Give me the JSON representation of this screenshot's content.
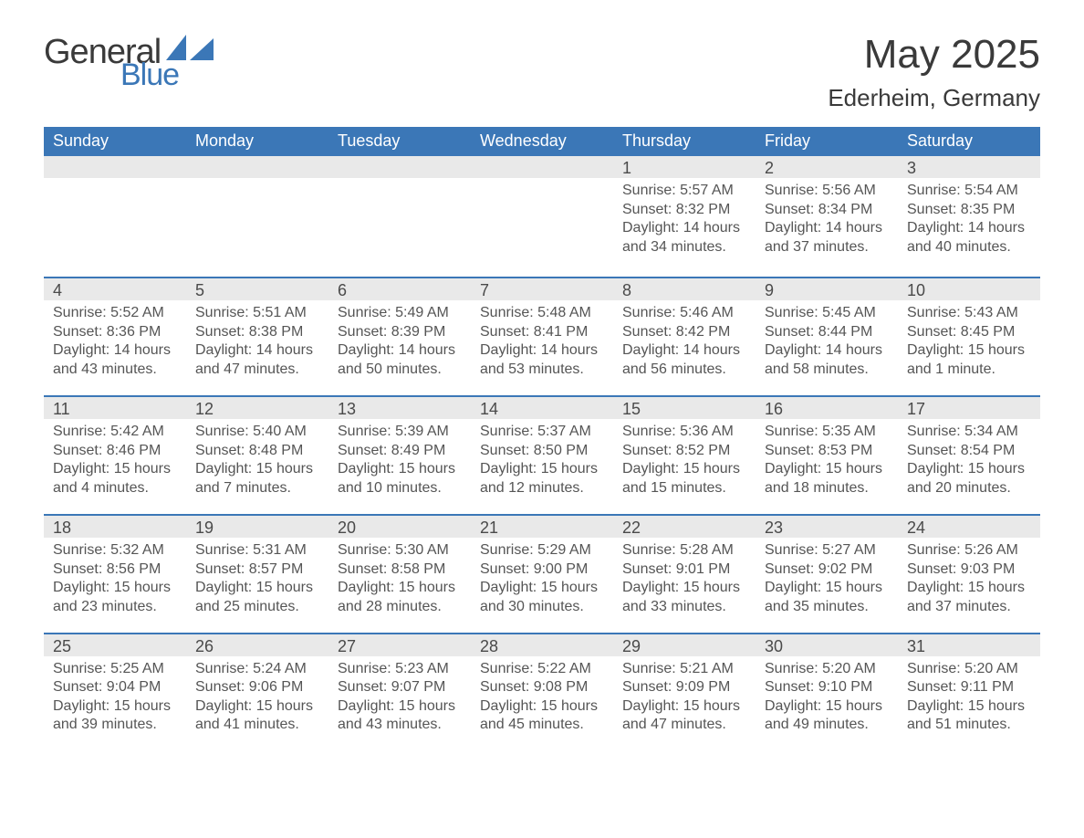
{
  "logo": {
    "word1": "General",
    "word2": "Blue",
    "word1_color": "#3a3a3a",
    "word2_color": "#3b77b7",
    "sail_color": "#3b77b7"
  },
  "header": {
    "month_title": "May 2025",
    "location": "Ederheim, Germany"
  },
  "calendar": {
    "type": "table",
    "columns": [
      "Sunday",
      "Monday",
      "Tuesday",
      "Wednesday",
      "Thursday",
      "Friday",
      "Saturday"
    ],
    "header_bg": "#3b77b7",
    "header_text_color": "#ffffff",
    "daynum_bg": "#e9e9e9",
    "divider_color": "#3b77b7",
    "body_text_color": "#555555",
    "font_family": "Helvetica Neue, Helvetica, Arial, sans-serif",
    "weeks": [
      [
        {
          "day": "",
          "sunrise": "",
          "sunset": "",
          "daylight": ""
        },
        {
          "day": "",
          "sunrise": "",
          "sunset": "",
          "daylight": ""
        },
        {
          "day": "",
          "sunrise": "",
          "sunset": "",
          "daylight": ""
        },
        {
          "day": "",
          "sunrise": "",
          "sunset": "",
          "daylight": ""
        },
        {
          "day": "1",
          "sunrise": "Sunrise: 5:57 AM",
          "sunset": "Sunset: 8:32 PM",
          "daylight": "Daylight: 14 hours and 34 minutes."
        },
        {
          "day": "2",
          "sunrise": "Sunrise: 5:56 AM",
          "sunset": "Sunset: 8:34 PM",
          "daylight": "Daylight: 14 hours and 37 minutes."
        },
        {
          "day": "3",
          "sunrise": "Sunrise: 5:54 AM",
          "sunset": "Sunset: 8:35 PM",
          "daylight": "Daylight: 14 hours and 40 minutes."
        }
      ],
      [
        {
          "day": "4",
          "sunrise": "Sunrise: 5:52 AM",
          "sunset": "Sunset: 8:36 PM",
          "daylight": "Daylight: 14 hours and 43 minutes."
        },
        {
          "day": "5",
          "sunrise": "Sunrise: 5:51 AM",
          "sunset": "Sunset: 8:38 PM",
          "daylight": "Daylight: 14 hours and 47 minutes."
        },
        {
          "day": "6",
          "sunrise": "Sunrise: 5:49 AM",
          "sunset": "Sunset: 8:39 PM",
          "daylight": "Daylight: 14 hours and 50 minutes."
        },
        {
          "day": "7",
          "sunrise": "Sunrise: 5:48 AM",
          "sunset": "Sunset: 8:41 PM",
          "daylight": "Daylight: 14 hours and 53 minutes."
        },
        {
          "day": "8",
          "sunrise": "Sunrise: 5:46 AM",
          "sunset": "Sunset: 8:42 PM",
          "daylight": "Daylight: 14 hours and 56 minutes."
        },
        {
          "day": "9",
          "sunrise": "Sunrise: 5:45 AM",
          "sunset": "Sunset: 8:44 PM",
          "daylight": "Daylight: 14 hours and 58 minutes."
        },
        {
          "day": "10",
          "sunrise": "Sunrise: 5:43 AM",
          "sunset": "Sunset: 8:45 PM",
          "daylight": "Daylight: 15 hours and 1 minute."
        }
      ],
      [
        {
          "day": "11",
          "sunrise": "Sunrise: 5:42 AM",
          "sunset": "Sunset: 8:46 PM",
          "daylight": "Daylight: 15 hours and 4 minutes."
        },
        {
          "day": "12",
          "sunrise": "Sunrise: 5:40 AM",
          "sunset": "Sunset: 8:48 PM",
          "daylight": "Daylight: 15 hours and 7 minutes."
        },
        {
          "day": "13",
          "sunrise": "Sunrise: 5:39 AM",
          "sunset": "Sunset: 8:49 PM",
          "daylight": "Daylight: 15 hours and 10 minutes."
        },
        {
          "day": "14",
          "sunrise": "Sunrise: 5:37 AM",
          "sunset": "Sunset: 8:50 PM",
          "daylight": "Daylight: 15 hours and 12 minutes."
        },
        {
          "day": "15",
          "sunrise": "Sunrise: 5:36 AM",
          "sunset": "Sunset: 8:52 PM",
          "daylight": "Daylight: 15 hours and 15 minutes."
        },
        {
          "day": "16",
          "sunrise": "Sunrise: 5:35 AM",
          "sunset": "Sunset: 8:53 PM",
          "daylight": "Daylight: 15 hours and 18 minutes."
        },
        {
          "day": "17",
          "sunrise": "Sunrise: 5:34 AM",
          "sunset": "Sunset: 8:54 PM",
          "daylight": "Daylight: 15 hours and 20 minutes."
        }
      ],
      [
        {
          "day": "18",
          "sunrise": "Sunrise: 5:32 AM",
          "sunset": "Sunset: 8:56 PM",
          "daylight": "Daylight: 15 hours and 23 minutes."
        },
        {
          "day": "19",
          "sunrise": "Sunrise: 5:31 AM",
          "sunset": "Sunset: 8:57 PM",
          "daylight": "Daylight: 15 hours and 25 minutes."
        },
        {
          "day": "20",
          "sunrise": "Sunrise: 5:30 AM",
          "sunset": "Sunset: 8:58 PM",
          "daylight": "Daylight: 15 hours and 28 minutes."
        },
        {
          "day": "21",
          "sunrise": "Sunrise: 5:29 AM",
          "sunset": "Sunset: 9:00 PM",
          "daylight": "Daylight: 15 hours and 30 minutes."
        },
        {
          "day": "22",
          "sunrise": "Sunrise: 5:28 AM",
          "sunset": "Sunset: 9:01 PM",
          "daylight": "Daylight: 15 hours and 33 minutes."
        },
        {
          "day": "23",
          "sunrise": "Sunrise: 5:27 AM",
          "sunset": "Sunset: 9:02 PM",
          "daylight": "Daylight: 15 hours and 35 minutes."
        },
        {
          "day": "24",
          "sunrise": "Sunrise: 5:26 AM",
          "sunset": "Sunset: 9:03 PM",
          "daylight": "Daylight: 15 hours and 37 minutes."
        }
      ],
      [
        {
          "day": "25",
          "sunrise": "Sunrise: 5:25 AM",
          "sunset": "Sunset: 9:04 PM",
          "daylight": "Daylight: 15 hours and 39 minutes."
        },
        {
          "day": "26",
          "sunrise": "Sunrise: 5:24 AM",
          "sunset": "Sunset: 9:06 PM",
          "daylight": "Daylight: 15 hours and 41 minutes."
        },
        {
          "day": "27",
          "sunrise": "Sunrise: 5:23 AM",
          "sunset": "Sunset: 9:07 PM",
          "daylight": "Daylight: 15 hours and 43 minutes."
        },
        {
          "day": "28",
          "sunrise": "Sunrise: 5:22 AM",
          "sunset": "Sunset: 9:08 PM",
          "daylight": "Daylight: 15 hours and 45 minutes."
        },
        {
          "day": "29",
          "sunrise": "Sunrise: 5:21 AM",
          "sunset": "Sunset: 9:09 PM",
          "daylight": "Daylight: 15 hours and 47 minutes."
        },
        {
          "day": "30",
          "sunrise": "Sunrise: 5:20 AM",
          "sunset": "Sunset: 9:10 PM",
          "daylight": "Daylight: 15 hours and 49 minutes."
        },
        {
          "day": "31",
          "sunrise": "Sunrise: 5:20 AM",
          "sunset": "Sunset: 9:11 PM",
          "daylight": "Daylight: 15 hours and 51 minutes."
        }
      ]
    ]
  }
}
